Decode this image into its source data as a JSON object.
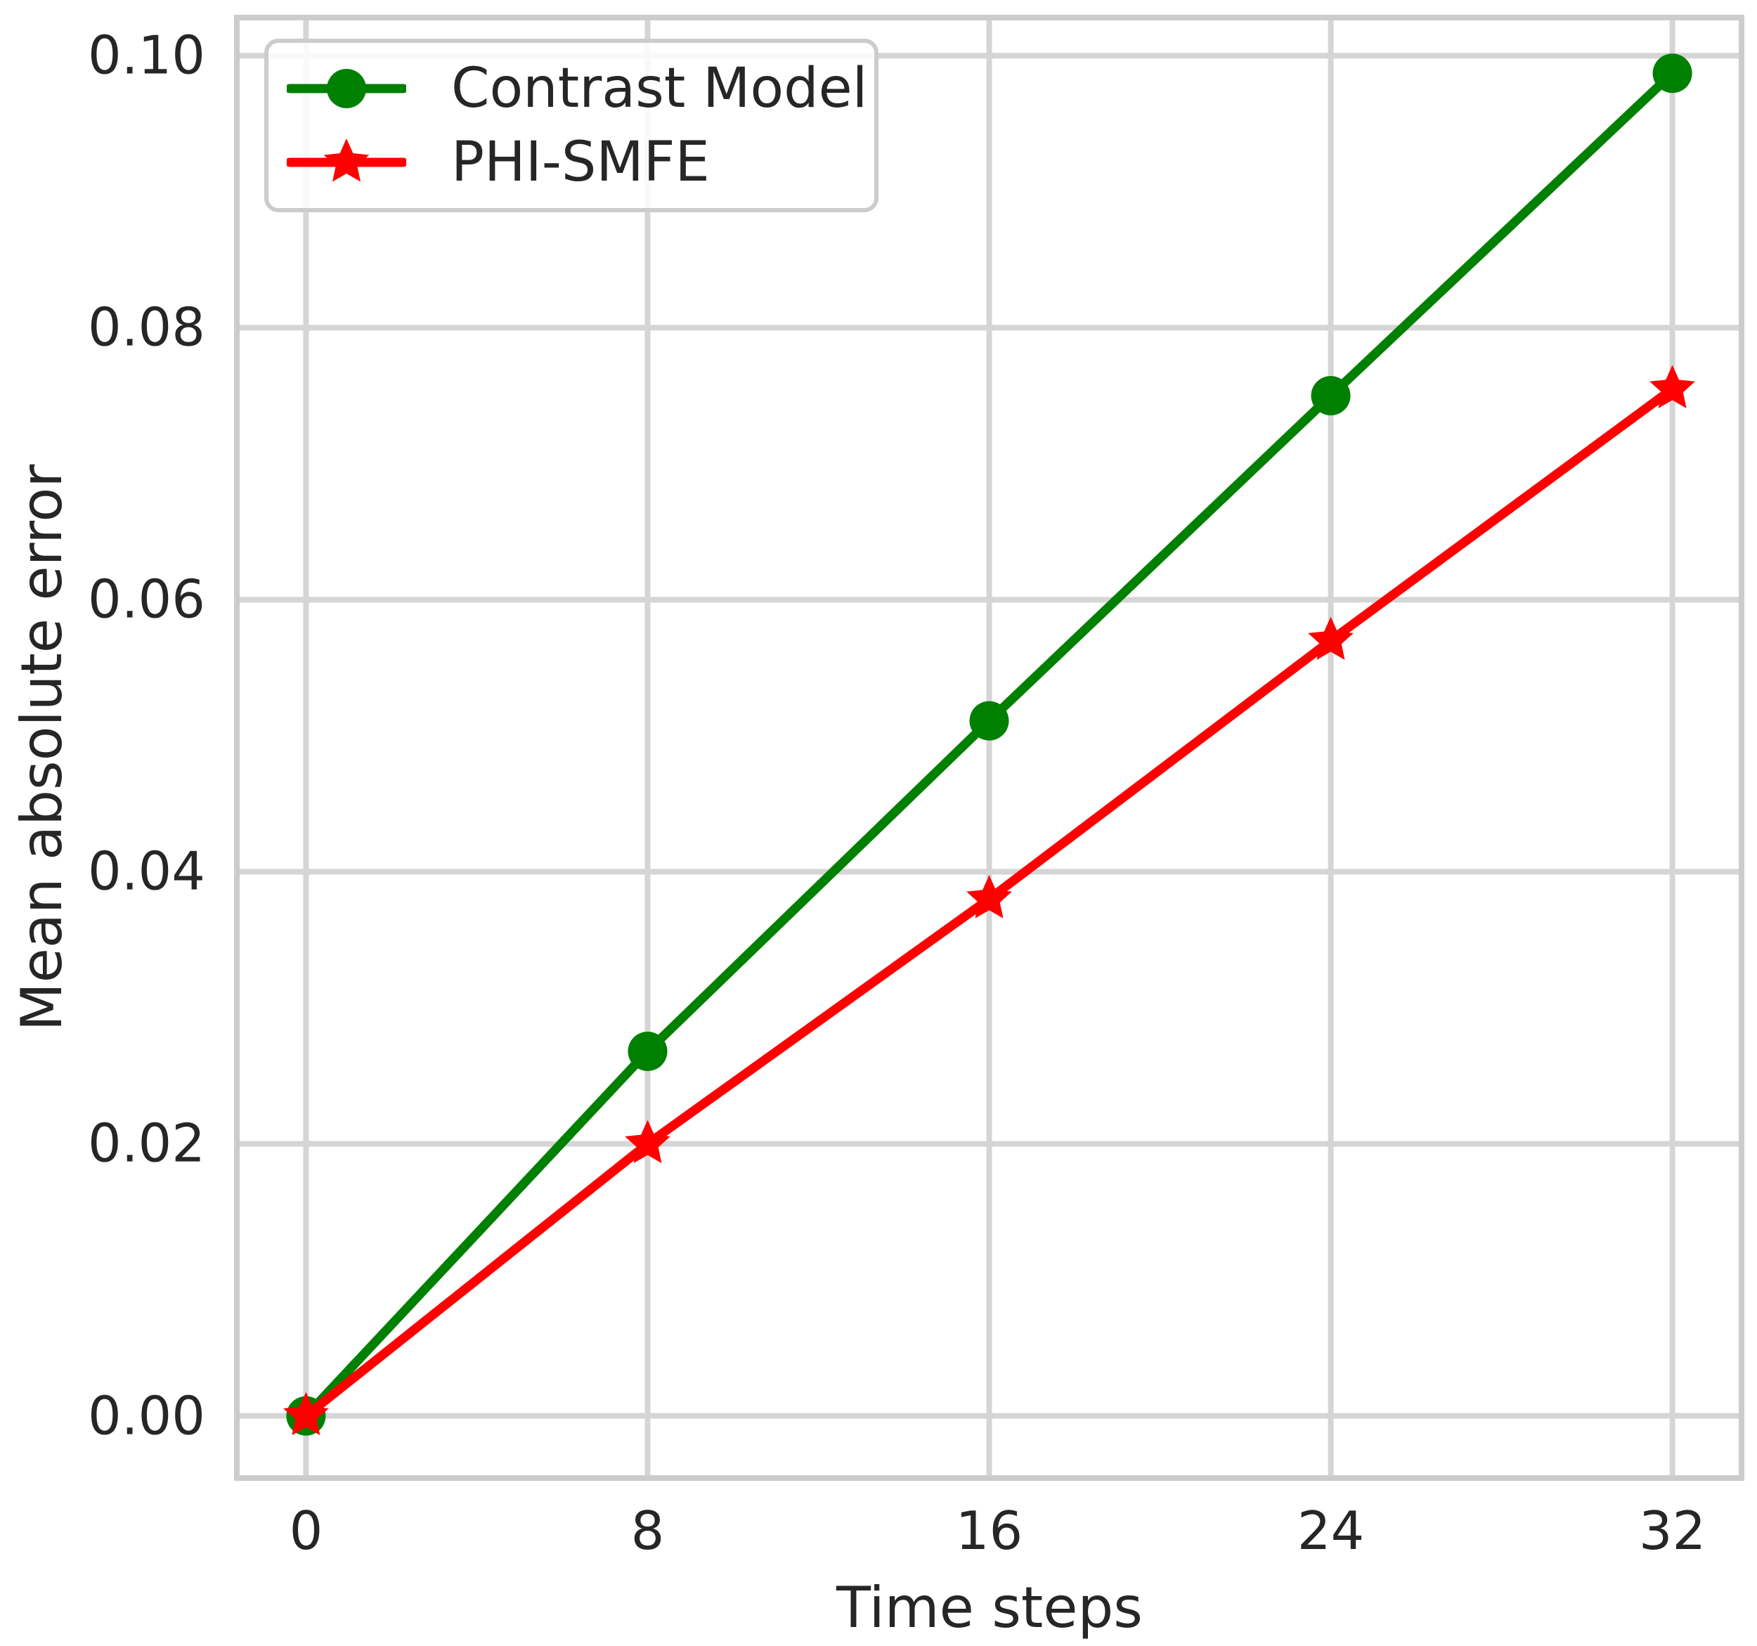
{
  "chart_data": {
    "type": "line",
    "title": "",
    "xlabel": "Time steps",
    "ylabel": "Mean absolute error",
    "x": [
      0,
      8,
      16,
      24,
      32
    ],
    "x_ticks": [
      0,
      8,
      16,
      24,
      32
    ],
    "x_tick_labels": [
      "0",
      "8",
      "16",
      "24",
      "32"
    ],
    "y_ticks": [
      0.0,
      0.02,
      0.04,
      0.06,
      0.08,
      0.1
    ],
    "y_tick_labels": [
      "0.00",
      "0.02",
      "0.04",
      "0.06",
      "0.08",
      "0.10"
    ],
    "xlim": [
      -1.62,
      33.62
    ],
    "ylim": [
      -0.00457,
      0.1028
    ],
    "grid": true,
    "legend_position": "upper left",
    "series": [
      {
        "name": "Contrast Model",
        "color": "#008000",
        "marker": "circle",
        "values": [
          0.0,
          0.0268,
          0.0511,
          0.075,
          0.0987
        ]
      },
      {
        "name": "PHI-SMFE",
        "color": "#ff0000",
        "marker": "star",
        "values": [
          0.0,
          0.02,
          0.038,
          0.057,
          0.0755
        ]
      }
    ],
    "colors": {
      "grid": "#d5d5d5",
      "spine": "#cccccc",
      "text": "#262626",
      "background": "#ffffff"
    }
  }
}
